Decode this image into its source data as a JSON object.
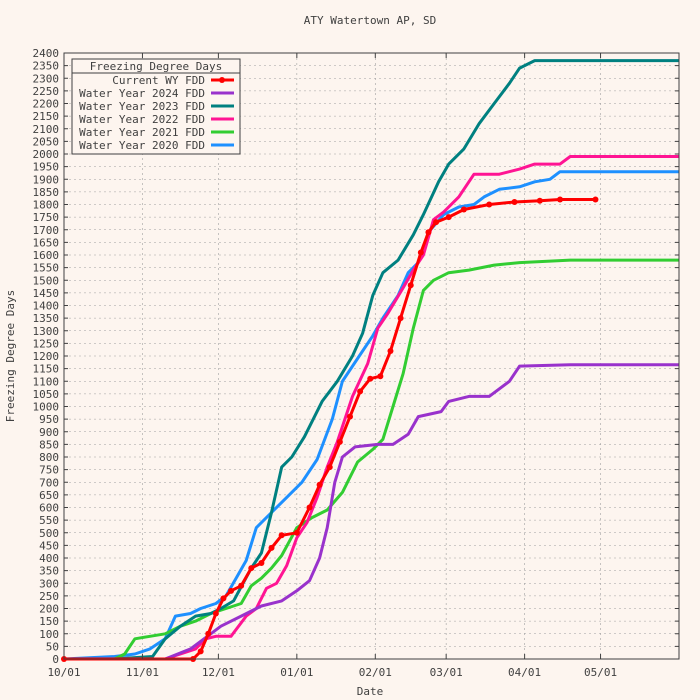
{
  "chart_data": {
    "type": "line",
    "title": "ATY Watertown AP, SD",
    "xlabel": "Date",
    "ylabel": "Freezing Degree Days",
    "ylim": [
      0,
      2400
    ],
    "ytick_step": 50,
    "x_range_days": [
      0,
      243
    ],
    "x_ticks": [
      {
        "label": "10/01",
        "day": 0
      },
      {
        "label": "11/01",
        "day": 31
      },
      {
        "label": "12/01",
        "day": 61
      },
      {
        "label": "01/01",
        "day": 92
      },
      {
        "label": "02/01",
        "day": 123
      },
      {
        "label": "03/01",
        "day": 151
      },
      {
        "label": "04/01",
        "day": 182
      },
      {
        "label": "05/01",
        "day": 212
      }
    ],
    "grid": true,
    "legend": {
      "title": "Freezing Degree Days",
      "placement": "top-left"
    },
    "series": [
      {
        "name": "Current WY FDD",
        "color": "#ff0000",
        "markers": true,
        "points": [
          [
            0,
            0
          ],
          [
            20,
            0
          ],
          [
            40,
            0
          ],
          [
            51,
            0
          ],
          [
            54,
            30
          ],
          [
            57,
            100
          ],
          [
            60,
            180
          ],
          [
            63,
            240
          ],
          [
            66,
            270
          ],
          [
            70,
            290
          ],
          [
            74,
            360
          ],
          [
            78,
            380
          ],
          [
            82,
            440
          ],
          [
            86,
            490
          ],
          [
            92,
            500
          ],
          [
            97,
            600
          ],
          [
            101,
            690
          ],
          [
            105,
            760
          ],
          [
            109,
            860
          ],
          [
            113,
            960
          ],
          [
            117,
            1060
          ],
          [
            121,
            1110
          ],
          [
            125,
            1120
          ],
          [
            129,
            1220
          ],
          [
            133,
            1350
          ],
          [
            137,
            1480
          ],
          [
            141,
            1610
          ],
          [
            144,
            1690
          ],
          [
            147,
            1730
          ],
          [
            152,
            1750
          ],
          [
            158,
            1780
          ],
          [
            168,
            1800
          ],
          [
            178,
            1810
          ],
          [
            188,
            1815
          ],
          [
            196,
            1820
          ],
          [
            210,
            1820
          ]
        ]
      },
      {
        "name": "Water Year 2024 FDD",
        "color": "#9932cc",
        "markers": false,
        "points": [
          [
            0,
            0
          ],
          [
            40,
            0
          ],
          [
            50,
            40
          ],
          [
            58,
            100
          ],
          [
            62,
            130
          ],
          [
            70,
            170
          ],
          [
            78,
            210
          ],
          [
            86,
            230
          ],
          [
            92,
            270
          ],
          [
            97,
            310
          ],
          [
            101,
            400
          ],
          [
            104,
            520
          ],
          [
            107,
            700
          ],
          [
            110,
            800
          ],
          [
            115,
            840
          ],
          [
            124,
            850
          ],
          [
            130,
            850
          ],
          [
            136,
            890
          ],
          [
            140,
            960
          ],
          [
            149,
            980
          ],
          [
            152,
            1020
          ],
          [
            160,
            1040
          ],
          [
            168,
            1040
          ],
          [
            176,
            1100
          ],
          [
            180,
            1160
          ],
          [
            200,
            1165
          ],
          [
            243,
            1165
          ]
        ]
      },
      {
        "name": "Water Year 2023 FDD",
        "color": "#008080",
        "markers": false,
        "points": [
          [
            0,
            0
          ],
          [
            20,
            0
          ],
          [
            35,
            10
          ],
          [
            40,
            80
          ],
          [
            46,
            130
          ],
          [
            52,
            170
          ],
          [
            58,
            180
          ],
          [
            62,
            200
          ],
          [
            67,
            230
          ],
          [
            74,
            360
          ],
          [
            78,
            420
          ],
          [
            82,
            580
          ],
          [
            86,
            760
          ],
          [
            90,
            800
          ],
          [
            95,
            880
          ],
          [
            102,
            1020
          ],
          [
            108,
            1100
          ],
          [
            114,
            1200
          ],
          [
            118,
            1290
          ],
          [
            122,
            1440
          ],
          [
            126,
            1530
          ],
          [
            132,
            1580
          ],
          [
            138,
            1680
          ],
          [
            142,
            1760
          ],
          [
            148,
            1890
          ],
          [
            152,
            1960
          ],
          [
            158,
            2020
          ],
          [
            164,
            2120
          ],
          [
            170,
            2200
          ],
          [
            176,
            2280
          ],
          [
            180,
            2340
          ],
          [
            186,
            2370
          ],
          [
            200,
            2370
          ],
          [
            243,
            2370
          ]
        ]
      },
      {
        "name": "Water Year 2022 FDD",
        "color": "#ff1493",
        "markers": false,
        "points": [
          [
            0,
            0
          ],
          [
            40,
            0
          ],
          [
            52,
            40
          ],
          [
            56,
            80
          ],
          [
            60,
            90
          ],
          [
            66,
            90
          ],
          [
            72,
            170
          ],
          [
            76,
            200
          ],
          [
            80,
            280
          ],
          [
            84,
            300
          ],
          [
            88,
            370
          ],
          [
            92,
            480
          ],
          [
            96,
            540
          ],
          [
            100,
            640
          ],
          [
            104,
            760
          ],
          [
            108,
            860
          ],
          [
            114,
            1040
          ],
          [
            120,
            1170
          ],
          [
            124,
            1310
          ],
          [
            128,
            1370
          ],
          [
            134,
            1470
          ],
          [
            138,
            1540
          ],
          [
            142,
            1600
          ],
          [
            146,
            1740
          ],
          [
            150,
            1770
          ],
          [
            156,
            1830
          ],
          [
            162,
            1920
          ],
          [
            172,
            1920
          ],
          [
            180,
            1940
          ],
          [
            186,
            1960
          ],
          [
            196,
            1960
          ],
          [
            200,
            1990
          ],
          [
            243,
            1990
          ]
        ]
      },
      {
        "name": "Water Year 2021 FDD",
        "color": "#32cd32",
        "markers": false,
        "points": [
          [
            0,
            0
          ],
          [
            20,
            0
          ],
          [
            24,
            20
          ],
          [
            28,
            80
          ],
          [
            34,
            90
          ],
          [
            40,
            100
          ],
          [
            46,
            130
          ],
          [
            52,
            150
          ],
          [
            58,
            180
          ],
          [
            64,
            200
          ],
          [
            70,
            220
          ],
          [
            74,
            290
          ],
          [
            78,
            320
          ],
          [
            82,
            360
          ],
          [
            86,
            410
          ],
          [
            92,
            520
          ],
          [
            98,
            560
          ],
          [
            104,
            590
          ],
          [
            110,
            660
          ],
          [
            116,
            780
          ],
          [
            122,
            830
          ],
          [
            126,
            870
          ],
          [
            130,
            1000
          ],
          [
            134,
            1130
          ],
          [
            138,
            1310
          ],
          [
            142,
            1460
          ],
          [
            146,
            1500
          ],
          [
            152,
            1530
          ],
          [
            160,
            1540
          ],
          [
            170,
            1560
          ],
          [
            180,
            1570
          ],
          [
            200,
            1580
          ],
          [
            243,
            1580
          ]
        ]
      },
      {
        "name": "Water Year 2020 FDD",
        "color": "#1e90ff",
        "markers": false,
        "points": [
          [
            0,
            0
          ],
          [
            20,
            10
          ],
          [
            28,
            20
          ],
          [
            34,
            40
          ],
          [
            40,
            80
          ],
          [
            44,
            170
          ],
          [
            50,
            180
          ],
          [
            54,
            200
          ],
          [
            60,
            220
          ],
          [
            64,
            250
          ],
          [
            68,
            320
          ],
          [
            72,
            390
          ],
          [
            76,
            520
          ],
          [
            82,
            580
          ],
          [
            88,
            640
          ],
          [
            94,
            700
          ],
          [
            100,
            790
          ],
          [
            106,
            950
          ],
          [
            110,
            1100
          ],
          [
            116,
            1190
          ],
          [
            122,
            1280
          ],
          [
            126,
            1350
          ],
          [
            132,
            1440
          ],
          [
            136,
            1530
          ],
          [
            140,
            1570
          ],
          [
            144,
            1690
          ],
          [
            150,
            1760
          ],
          [
            156,
            1790
          ],
          [
            162,
            1800
          ],
          [
            166,
            1830
          ],
          [
            172,
            1860
          ],
          [
            180,
            1870
          ],
          [
            186,
            1890
          ],
          [
            192,
            1900
          ],
          [
            196,
            1930
          ],
          [
            210,
            1930
          ],
          [
            243,
            1930
          ]
        ]
      }
    ]
  }
}
